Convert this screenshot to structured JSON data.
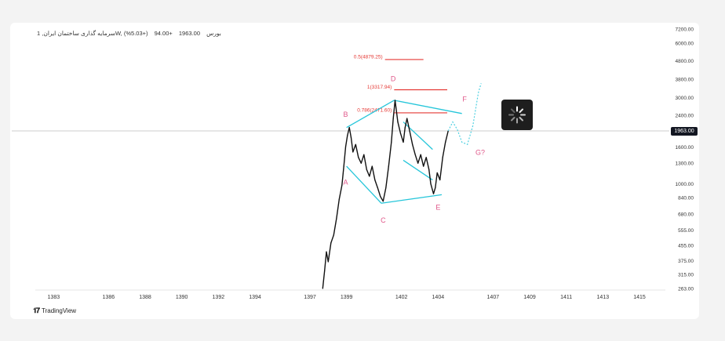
{
  "header": {
    "symbol": "سرمایه گذاری ساختمان ایران, 1W, بورس",
    "price": "1963.00",
    "change": "+94.00",
    "change_pct": "(+5.03%)"
  },
  "brand": {
    "name": "TradingView"
  },
  "last_price_label": "1963.00",
  "icons": {
    "loader": "loading-spinner-icon",
    "logo": "tradingview-logo-icon"
  },
  "colors": {
    "price_line": "#111111",
    "pattern": "#26c6da",
    "fib": "#e53935",
    "label": "#e0588a",
    "bg": "#ffffff"
  },
  "chart_data": {
    "type": "line",
    "y_scale": "log",
    "x_ticks": [
      "1383",
      "1386",
      "1388",
      "1390",
      "1392",
      "1394",
      "1397",
      "1399",
      "1402",
      "1404",
      "1407",
      "1409",
      "1411",
      "1413",
      "1415"
    ],
    "x_range": [
      1382,
      1416.5
    ],
    "y_ticks": [
      "7200.00",
      "6000.00",
      "4800.00",
      "3800.00",
      "3000.00",
      "2400.00",
      "1963.00",
      "1600.00",
      "1300.00",
      "1000.00",
      "840.00",
      "680.00",
      "555.00",
      "455.00",
      "375.00",
      "315.00",
      "263.00"
    ],
    "ylim": [
      263,
      7200
    ],
    "last_price": 1963,
    "series": [
      {
        "values": [
          [
            1397.7,
            263
          ],
          [
            1397.8,
            330
          ],
          [
            1397.9,
            420
          ],
          [
            1398.0,
            370
          ],
          [
            1398.15,
            470
          ],
          [
            1398.3,
            520
          ],
          [
            1398.45,
            640
          ],
          [
            1398.6,
            820
          ],
          [
            1398.75,
            980
          ],
          [
            1398.85,
            1250
          ],
          [
            1398.95,
            1600
          ],
          [
            1399.05,
            1850
          ],
          [
            1399.15,
            2050
          ],
          [
            1399.25,
            1800
          ],
          [
            1399.35,
            1500
          ],
          [
            1399.5,
            1650
          ],
          [
            1399.65,
            1400
          ],
          [
            1399.8,
            1300
          ],
          [
            1399.95,
            1450
          ],
          [
            1400.1,
            1200
          ],
          [
            1400.25,
            1100
          ],
          [
            1400.4,
            1250
          ],
          [
            1400.55,
            1050
          ],
          [
            1400.7,
            950
          ],
          [
            1400.85,
            850
          ],
          [
            1401.0,
            800
          ],
          [
            1401.15,
            950
          ],
          [
            1401.3,
            1250
          ],
          [
            1401.45,
            1700
          ],
          [
            1401.55,
            2300
          ],
          [
            1401.65,
            2900
          ],
          [
            1401.8,
            2200
          ],
          [
            1401.95,
            1900
          ],
          [
            1402.1,
            1700
          ],
          [
            1402.2,
            2050
          ],
          [
            1402.3,
            2300
          ],
          [
            1402.45,
            1950
          ],
          [
            1402.6,
            1650
          ],
          [
            1402.75,
            1450
          ],
          [
            1402.9,
            1300
          ],
          [
            1403.05,
            1450
          ],
          [
            1403.2,
            1250
          ],
          [
            1403.35,
            1400
          ],
          [
            1403.5,
            1200
          ],
          [
            1403.6,
            1000
          ],
          [
            1403.75,
            880
          ],
          [
            1403.85,
            950
          ],
          [
            1403.95,
            1150
          ],
          [
            1404.1,
            1050
          ],
          [
            1404.25,
            1400
          ],
          [
            1404.4,
            1700
          ],
          [
            1404.55,
            1963
          ]
        ]
      }
    ],
    "projection": [
      [
        1404.55,
        1963
      ],
      [
        1404.8,
        2200
      ],
      [
        1405.05,
        2000
      ],
      [
        1405.3,
        1700
      ],
      [
        1405.6,
        1650
      ],
      [
        1405.9,
        2100
      ],
      [
        1406.2,
        3200
      ],
      [
        1406.35,
        3600
      ]
    ],
    "pattern_points": {
      "A": [
        1399.0,
        1250
      ],
      "B": [
        1399.0,
        2050
      ],
      "C": [
        1400.9,
        780
      ],
      "D": [
        1401.6,
        2900
      ],
      "E": [
        1404.2,
        870
      ],
      "F": [
        1405.3,
        2450
      ]
    },
    "pattern_lines": [
      [
        [
          1399.0,
          1250
        ],
        [
          1400.9,
          780
        ]
      ],
      [
        [
          1400.9,
          780
        ],
        [
          1404.2,
          870
        ]
      ],
      [
        [
          1399.0,
          2050
        ],
        [
          1401.6,
          2900
        ]
      ],
      [
        [
          1401.6,
          2900
        ],
        [
          1405.3,
          2450
        ]
      ],
      [
        [
          1402.1,
          2200
        ],
        [
          1403.7,
          1550
        ]
      ],
      [
        [
          1402.1,
          1350
        ],
        [
          1403.7,
          1050
        ]
      ]
    ],
    "fib_levels": [
      {
        "label": "0.5(4879.25)",
        "value": 4879.25,
        "x0": 1401.1,
        "x1": 1403.2
      },
      {
        "label": "1(3317.94)",
        "value": 3317.94,
        "x0": 1401.6,
        "x1": 1404.5
      },
      {
        "label": "0.786(2471.60)",
        "value": 2471.6,
        "x0": 1401.6,
        "x1": 1404.5
      }
    ],
    "labels": [
      {
        "text": "A",
        "x": 1398.95,
        "y": 990
      },
      {
        "text": "B",
        "x": 1398.95,
        "y": 2350
      },
      {
        "text": "C",
        "x": 1401.0,
        "y": 610
      },
      {
        "text": "D",
        "x": 1401.55,
        "y": 3700
      },
      {
        "text": "E",
        "x": 1404.0,
        "y": 720
      },
      {
        "text": "F",
        "x": 1405.45,
        "y": 2850
      },
      {
        "text": "G?",
        "x": 1406.3,
        "y": 1450
      }
    ]
  }
}
